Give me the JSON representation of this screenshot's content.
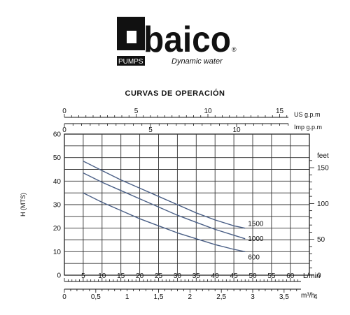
{
  "logo": {
    "brand": "baico",
    "tag": "PUMPS",
    "slogan": "Dynamic water",
    "registered": "®"
  },
  "chart_data": {
    "type": "line",
    "title": "CURVAS DE  OPERACIÓN",
    "ylabel": "H (MTS)",
    "ylim": [
      0,
      60
    ],
    "yticks": [
      "0",
      "10",
      "20",
      "30",
      "40",
      "50",
      "60"
    ],
    "xlim": [
      0,
      65
    ],
    "xlabel": "L/min",
    "xticks": [
      "0",
      "5",
      "10",
      "15",
      "20",
      "25",
      "30",
      "35",
      "40",
      "45",
      "50",
      "55",
      "60"
    ],
    "grid": true,
    "feet_axis": {
      "label": "feet",
      "ticks": [
        "0",
        "50",
        "100",
        "150"
      ],
      "values": [
        0,
        50,
        100,
        150
      ]
    },
    "m3h_axis": {
      "label": "m³/h",
      "ticks": [
        "0",
        "0,5",
        "1",
        "1,5",
        "2",
        "2,5",
        "3",
        "3,5",
        "4"
      ],
      "values": [
        0,
        0.5,
        1,
        1.5,
        2,
        2.5,
        3,
        3.5,
        4
      ]
    },
    "usgpm_axis": {
      "label": "US g.p.m",
      "ticks": [
        "0",
        "5",
        "10",
        "15"
      ],
      "values": [
        0,
        5,
        10,
        15
      ]
    },
    "impgpm_axis": {
      "label": "Imp g.p.m",
      "ticks": [
        "0",
        "5",
        "10"
      ],
      "values": [
        0,
        5,
        10
      ]
    },
    "series": [
      {
        "name": "1500",
        "x": [
          5,
          10,
          15,
          20,
          25,
          30,
          35,
          40,
          45,
          48
        ],
        "y": [
          48.5,
          44.5,
          40.5,
          37,
          33.5,
          30,
          26.5,
          23.5,
          21,
          20
        ]
      },
      {
        "name": "1000",
        "x": [
          5,
          10,
          15,
          20,
          25,
          30,
          35,
          40,
          45,
          48
        ],
        "y": [
          43.5,
          39.5,
          36,
          32.5,
          29,
          25.5,
          22.5,
          19.5,
          17,
          15.5
        ]
      },
      {
        "name": "600",
        "x": [
          5,
          10,
          15,
          20,
          25,
          30,
          35,
          40,
          45,
          48
        ],
        "y": [
          35,
          31,
          27.5,
          24,
          21,
          18,
          15.5,
          13,
          11,
          10
        ]
      }
    ]
  }
}
